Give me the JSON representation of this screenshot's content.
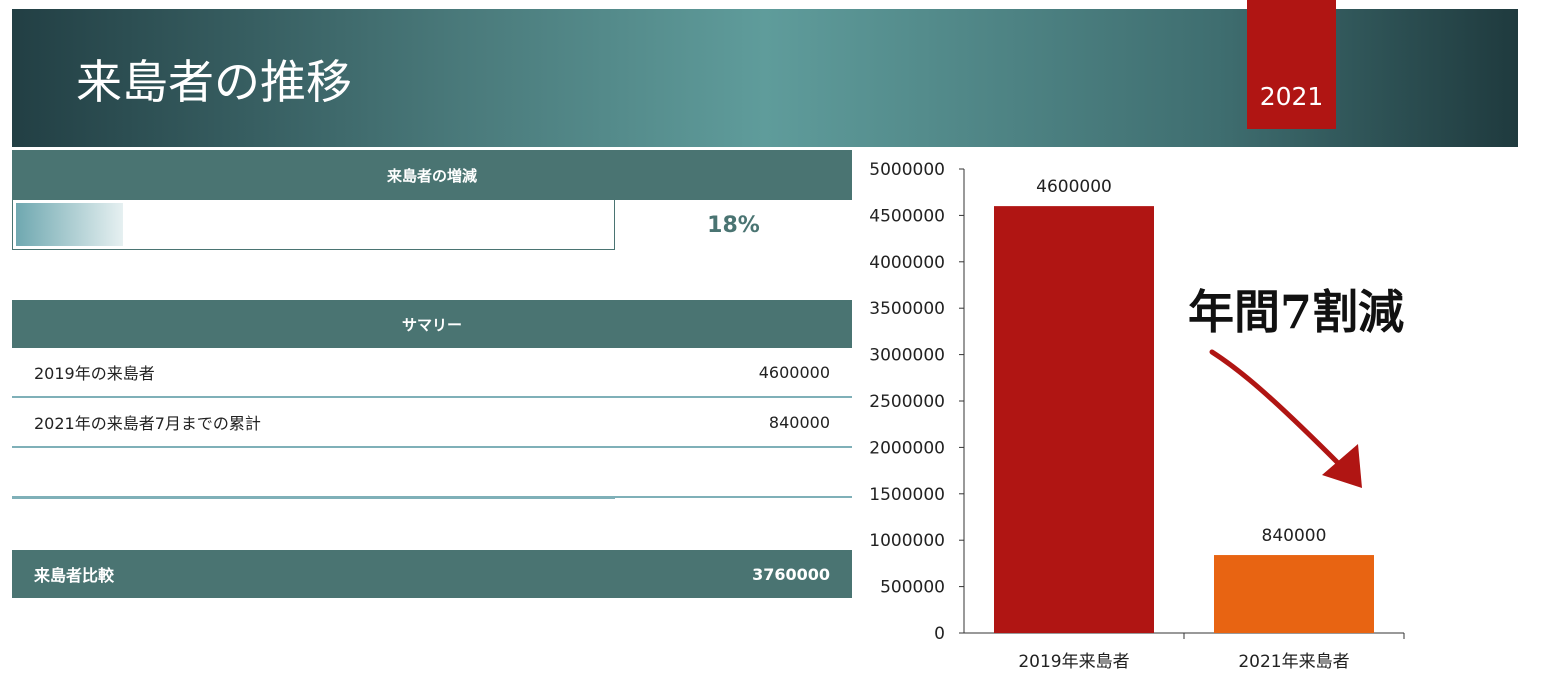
{
  "header": {
    "title": "来島者の推移",
    "year": "2021"
  },
  "change": {
    "label": "来島者の増減",
    "percent_text": "18%",
    "fill_fraction": 0.18
  },
  "summary": {
    "label": "サマリー",
    "rows": [
      {
        "label": "2019年の来島者",
        "value": "4600000"
      },
      {
        "label": "2021年の来島者7月までの累計",
        "value": "840000"
      },
      {
        "label": "",
        "value": ""
      }
    ]
  },
  "compare": {
    "label": "来島者比較",
    "value": "3760000"
  },
  "annotation": {
    "text": "年間7割減",
    "arrow_icon": "red-arrow-down-right"
  },
  "colors": {
    "header": "#4a7472",
    "accent_red": "#b01513",
    "orange": "#e86412"
  },
  "chart_data": {
    "type": "bar",
    "categories": [
      "2019年来島者",
      "2021年来島者"
    ],
    "values": [
      4600000,
      840000
    ],
    "data_labels": [
      "4600000",
      "840000"
    ],
    "colors": [
      "#b01513",
      "#e86412"
    ],
    "ylim": [
      0,
      5000000
    ],
    "yticks": [
      "0",
      "500000",
      "1000000",
      "1500000",
      "2000000",
      "2500000",
      "3000000",
      "3500000",
      "4000000",
      "4500000",
      "5000000"
    ],
    "grid": false
  }
}
